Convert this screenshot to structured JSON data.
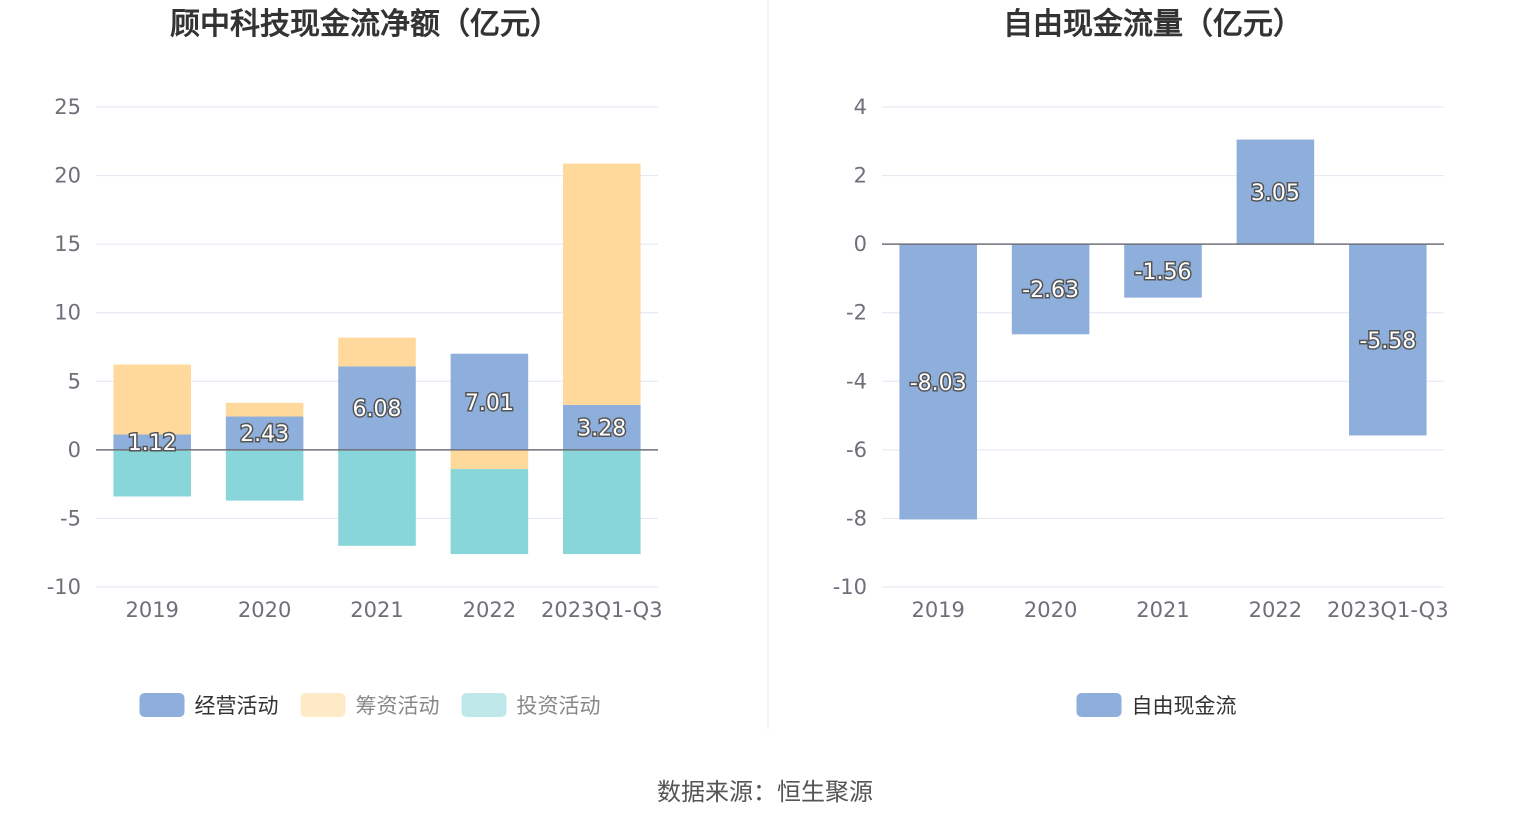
{
  "source": "数据来源：恒生聚源",
  "chart_data": [
    {
      "type": "bar",
      "stacked": true,
      "title": "顾中科技现金流净额（亿元）",
      "categories": [
        "2019",
        "2020",
        "2021",
        "2022",
        "2023Q1-Q3"
      ],
      "ylim": [
        -10,
        25
      ],
      "yticks": [
        25,
        20,
        15,
        10,
        5,
        0,
        -5,
        -10
      ],
      "grid": true,
      "legend_position": "bottom",
      "series": [
        {
          "name": "经营活动",
          "color": "#8eaedb",
          "values": [
            1.12,
            2.43,
            6.08,
            7.01,
            3.28
          ],
          "labels": [
            "1.12",
            "2.43",
            "6.08",
            "7.01",
            "3.28"
          ]
        },
        {
          "name": "筹资活动",
          "color": "#ffd89b",
          "values": [
            5.1,
            1.0,
            2.1,
            -1.4,
            17.6
          ]
        },
        {
          "name": "投资活动",
          "color": "#88d6d9",
          "values": [
            -3.4,
            -3.7,
            -7.0,
            -6.2,
            -7.6
          ]
        }
      ]
    },
    {
      "type": "bar",
      "title": "自由现金流量（亿元）",
      "categories": [
        "2019",
        "2020",
        "2021",
        "2022",
        "2023Q1-Q3"
      ],
      "ylim": [
        -10,
        4
      ],
      "yticks": [
        4,
        2,
        0,
        -2,
        -4,
        -6,
        -8,
        -10
      ],
      "grid": true,
      "legend_position": "bottom",
      "series": [
        {
          "name": "自由现金流",
          "color": "#8eaedb",
          "values": [
            -8.03,
            -2.63,
            -1.56,
            3.05,
            -5.58
          ],
          "labels": [
            "-8.03",
            "-2.63",
            "-1.56",
            "3.05",
            "-5.58"
          ]
        }
      ]
    }
  ]
}
